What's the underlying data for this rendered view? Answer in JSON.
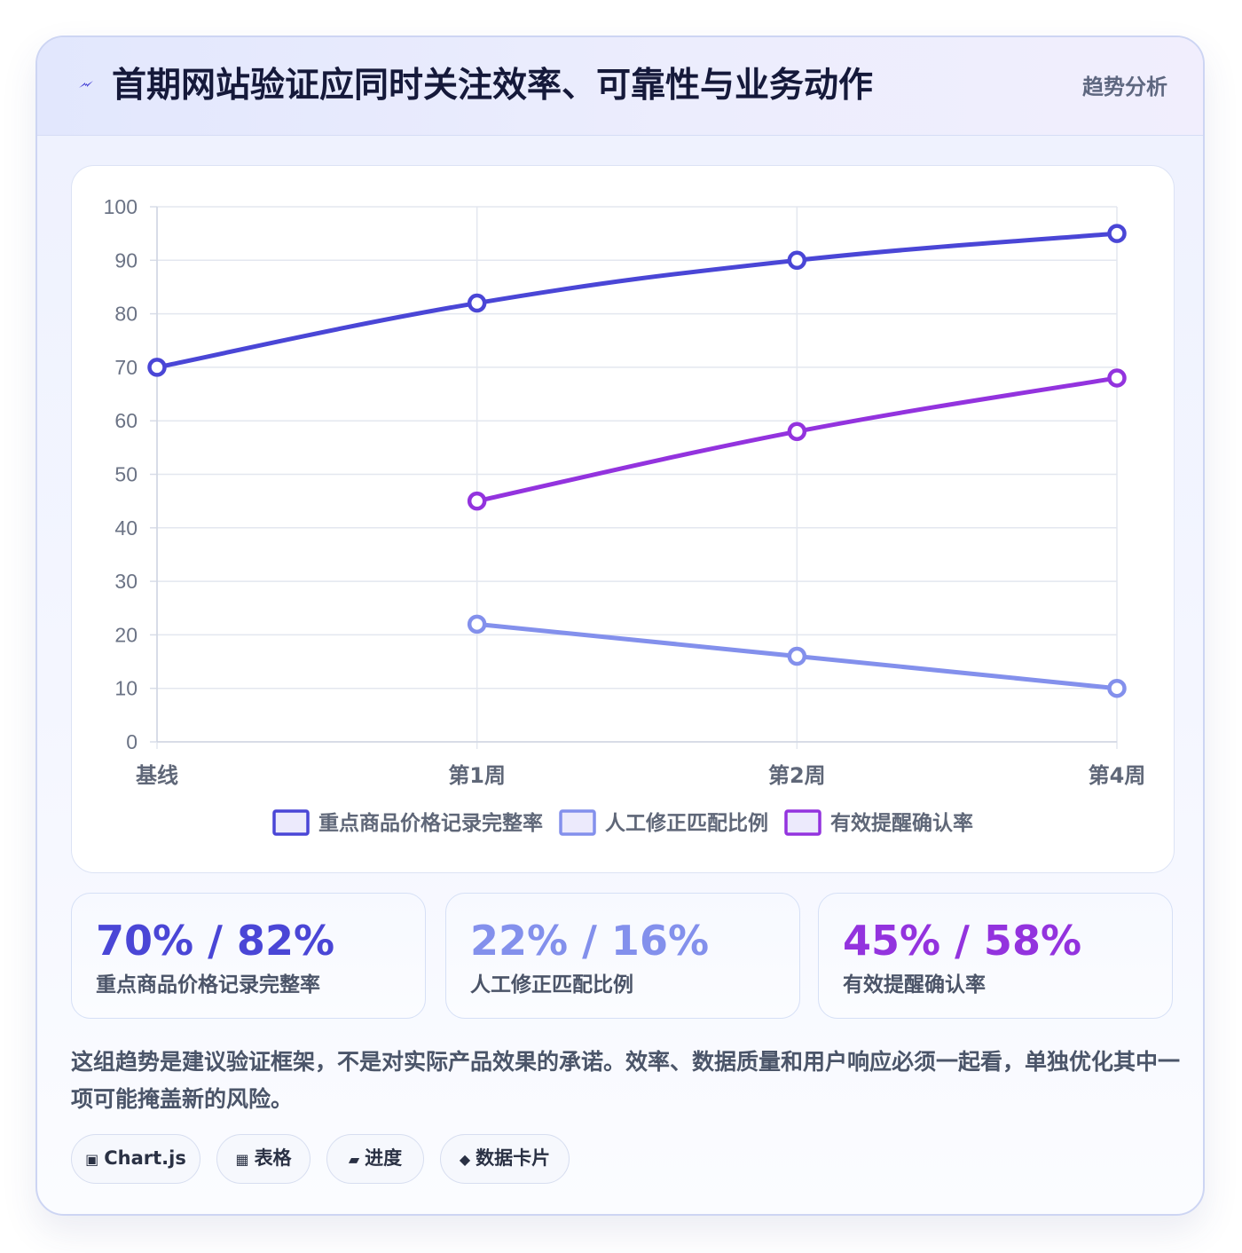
{
  "header": {
    "title": "首期网站验证应同时关注效率、可靠性与业务动作",
    "tag": "趋势分析"
  },
  "colors": {
    "series1": "#4a46d6",
    "series2": "#8390ec",
    "series3": "#9333de"
  },
  "chart_data": {
    "type": "line",
    "categories": [
      "基线",
      "第1周",
      "第2周",
      "第4周"
    ],
    "ylim": [
      0,
      100
    ],
    "yticks": [
      0,
      10,
      20,
      30,
      40,
      50,
      60,
      70,
      80,
      90,
      100
    ],
    "grid": true,
    "legend": "bottom",
    "series": [
      {
        "name": "重点商品价格记录完整率",
        "values": [
          70,
          82,
          90,
          95
        ]
      },
      {
        "name": "人工修正匹配比例",
        "values": [
          null,
          22,
          16,
          10
        ]
      },
      {
        "name": "有效提醒确认率",
        "values": [
          null,
          45,
          58,
          68
        ]
      }
    ]
  },
  "stats": [
    {
      "value": "70% / 82%",
      "label": "重点商品价格记录完整率"
    },
    {
      "value": "22% / 16%",
      "label": "人工修正匹配比例"
    },
    {
      "value": "45% / 58%",
      "label": "有效提醒确认率"
    }
  ],
  "note": "这组趋势是建议验证框架，不是对实际产品效果的承诺。效率、数据质量和用户响应必须一起看，单独优化其中一项可能掩盖新的风险。",
  "chips": [
    {
      "icon": "▣",
      "label": "Chart.js"
    },
    {
      "icon": "▦",
      "label": "表格"
    },
    {
      "icon": "▰",
      "label": "进度"
    },
    {
      "icon": "◆",
      "label": "数据卡片"
    }
  ]
}
